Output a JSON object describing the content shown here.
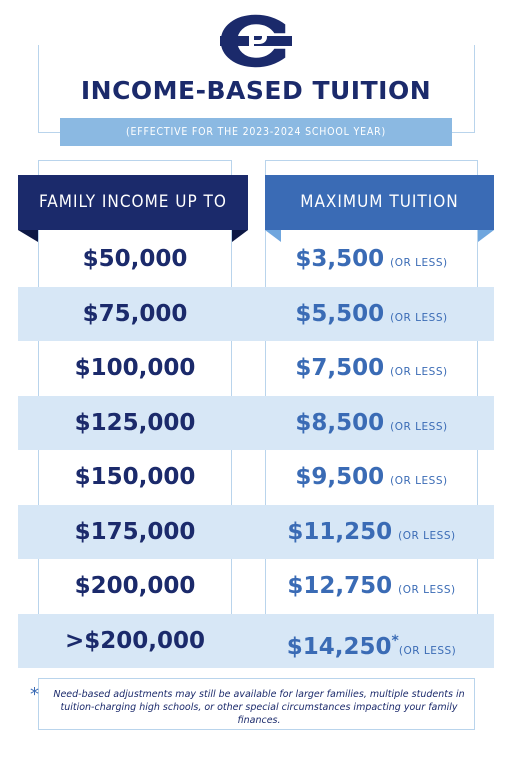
{
  "header": {
    "title": "INCOME-BASED TUITION",
    "subtitle": "(EFFECTIVE FOR THE 2023-2024 SCHOOL YEAR)"
  },
  "table": {
    "columns": [
      "FAMILY INCOME UP TO",
      "MAXIMUM TUITION"
    ],
    "rows": [
      {
        "income": "$50,000",
        "tuition": "$3,500",
        "note": "(OR LESS)"
      },
      {
        "income": "$75,000",
        "tuition": "$5,500",
        "note": "(OR LESS)"
      },
      {
        "income": "$100,000",
        "tuition": "$7,500",
        "note": "(OR LESS)"
      },
      {
        "income": "$125,000",
        "tuition": "$8,500",
        "note": "(OR LESS)"
      },
      {
        "income": "$150,000",
        "tuition": "$9,500",
        "note": "(OR LESS)"
      },
      {
        "income": "$175,000",
        "tuition": "$11,250",
        "note": "(OR LESS)"
      },
      {
        "income": "$200,000",
        "tuition": "$12,750",
        "note": "(OR LESS)"
      },
      {
        "income": ">$200,000",
        "tuition": "$14,250",
        "marker": "*",
        "note": "(OR LESS)"
      }
    ]
  },
  "footnote": {
    "mark": "*",
    "text": "Need-based adjustments may still be available for larger families, multiple students in tuition-charging high schools, or other special circumstances impacting your family finances."
  }
}
